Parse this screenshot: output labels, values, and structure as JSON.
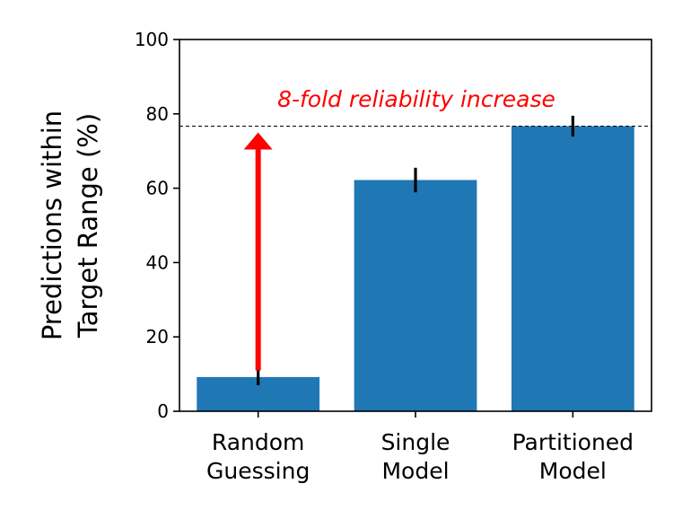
{
  "chart_data": {
    "type": "bar",
    "categories": [
      [
        "Random",
        "Guessing"
      ],
      [
        "Single",
        "Model"
      ],
      [
        "Partitioned",
        "Model"
      ]
    ],
    "values": [
      9.2,
      62.2,
      76.7
    ],
    "errors": [
      2.2,
      3.3,
      2.8
    ],
    "ylabel": [
      "Predictions within",
      "Target Range (%)"
    ],
    "ylim": [
      0,
      100
    ],
    "yticks": [
      0,
      20,
      40,
      60,
      80,
      100
    ],
    "bar_color": "#1f77b4",
    "reference_line": {
      "y": 76.7,
      "style": "dashed",
      "color": "#000000"
    },
    "arrow": {
      "category_index": 0,
      "from_y": 11,
      "to_y": 75,
      "color": "#ff0000"
    },
    "annotation": {
      "text": "8-fold reliability increase",
      "color": "#ff0000",
      "y": 84
    },
    "grid": false
  }
}
